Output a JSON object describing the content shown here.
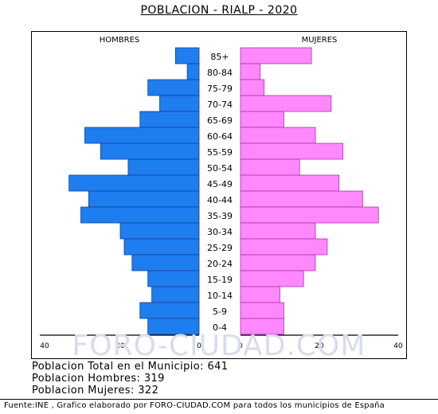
{
  "title": "POBLACION - RIALP - 2020",
  "summary": {
    "total": "Poblacion Total en el Municipio: 641",
    "hombres": "Poblacion Hombres: 319",
    "mujeres": "Poblacion Mujeres: 322"
  },
  "footer": "Fuente:INE , Grafico elaborado por FORO-CIUDAD.COM para todos los municipios de España",
  "watermark": "FORO-CIUDAD.COM",
  "chart_data": {
    "type": "bar",
    "orientation": "horizontal-pyramid",
    "categories": [
      "85+",
      "80-84",
      "75-79",
      "70-74",
      "65-69",
      "60-64",
      "55-59",
      "50-54",
      "45-49",
      "40-44",
      "35-39",
      "30-34",
      "25-29",
      "20-24",
      "15-19",
      "10-14",
      "5-9",
      "0-4"
    ],
    "series": [
      {
        "name": "HOMBRES",
        "values": [
          6,
          3,
          13,
          10,
          15,
          29,
          25,
          18,
          33,
          28,
          30,
          20,
          19,
          17,
          13,
          12,
          15,
          13
        ],
        "color": "#1e7ef0"
      },
      {
        "name": "MUJERES",
        "values": [
          18,
          5,
          6,
          23,
          11,
          19,
          26,
          15,
          25,
          31,
          35,
          19,
          22,
          19,
          16,
          10,
          11,
          11
        ],
        "color": "#ff88ff"
      }
    ],
    "x_ticks": [
      "40",
      "20",
      "0",
      "0",
      "20",
      "40"
    ],
    "xlim": [
      0,
      40
    ],
    "grid": false
  }
}
